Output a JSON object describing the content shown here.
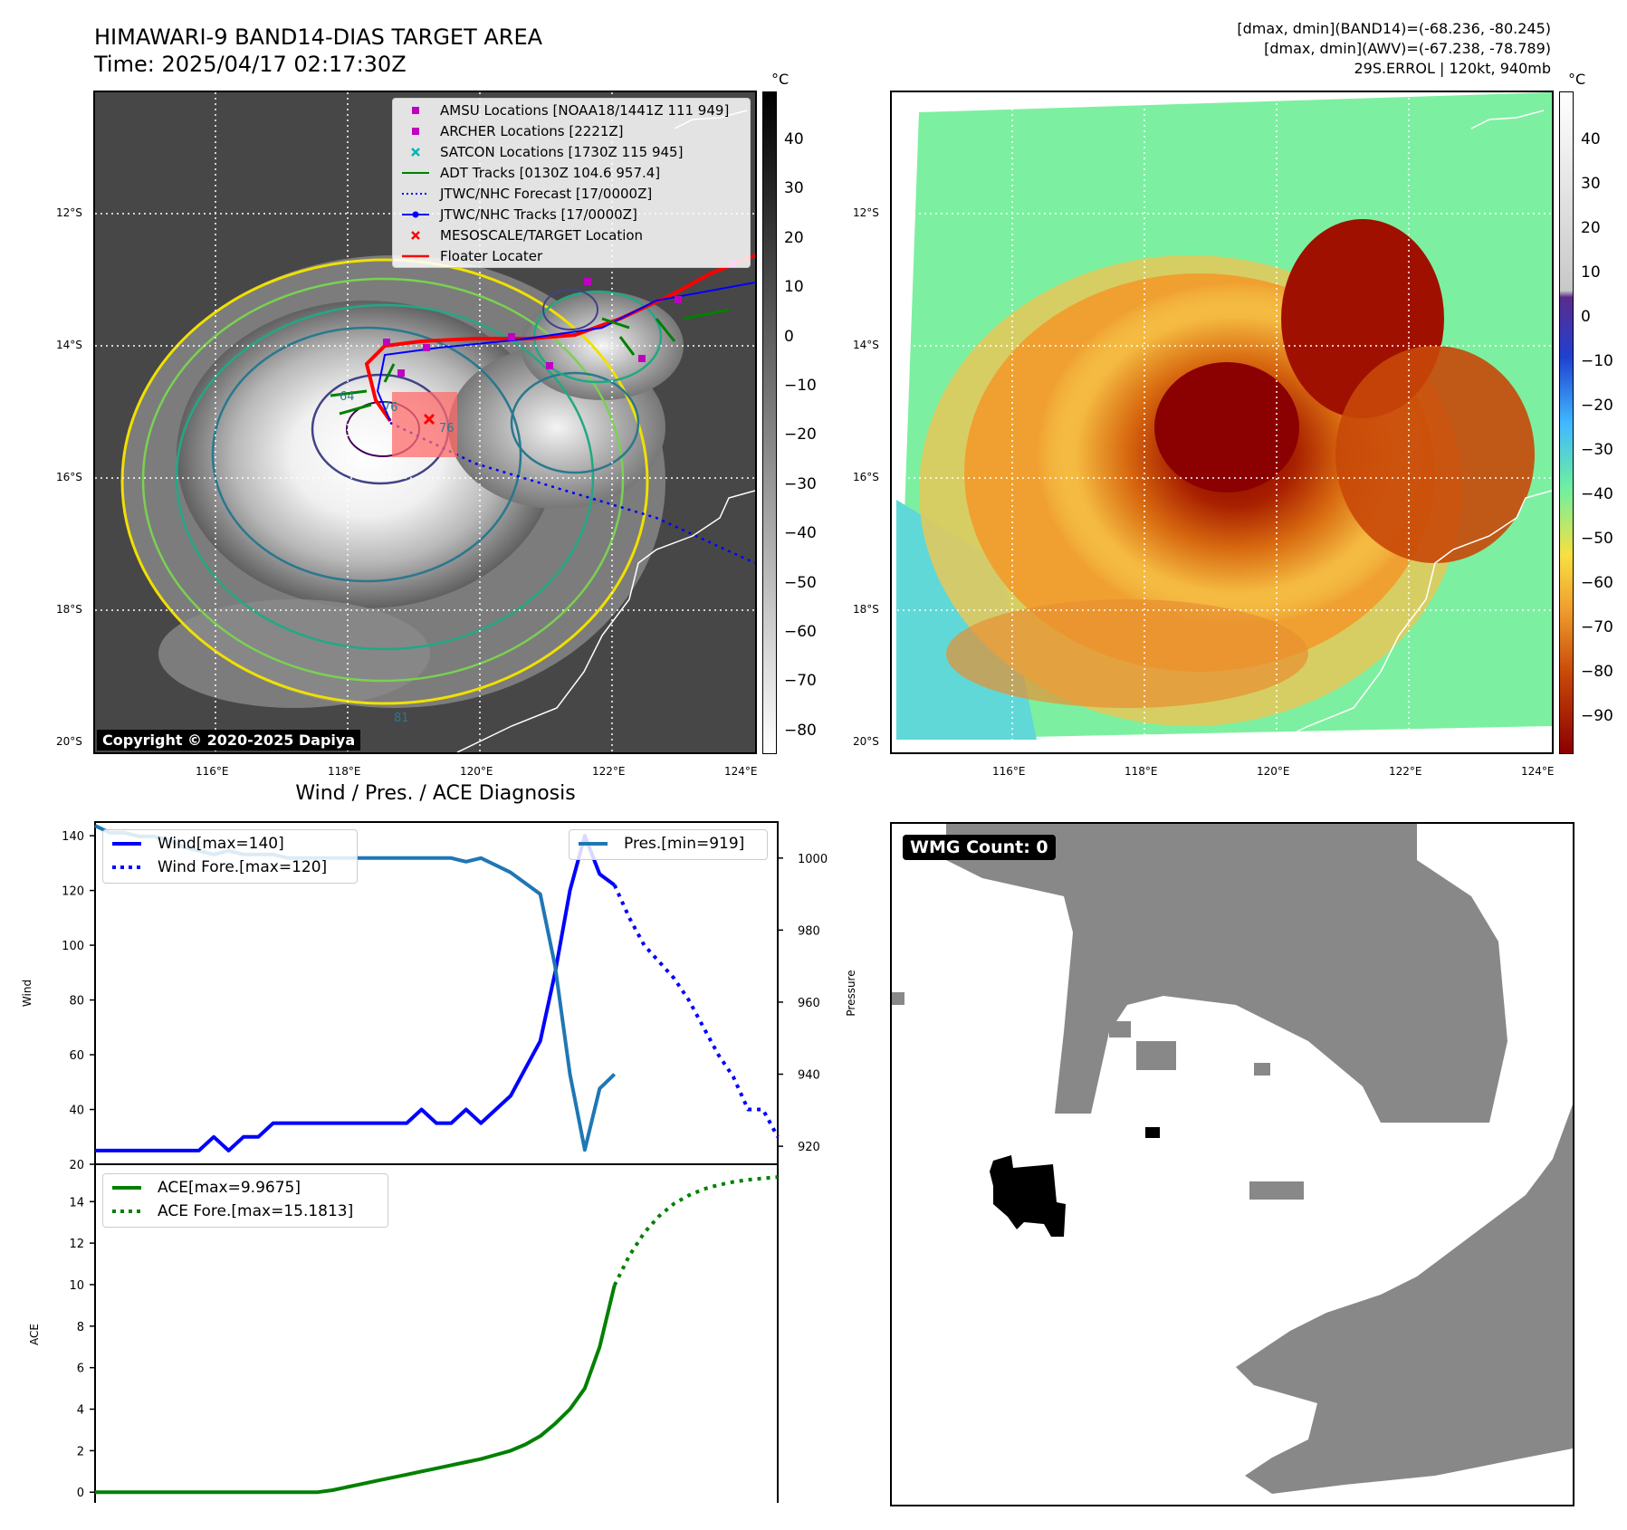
{
  "header": {
    "title_line1": "HIMAWARI-9 BAND14-DIAS TARGET AREA",
    "title_line2": "Time: 2025/04/17 02:17:30Z",
    "stats_line1": "[dmax, dmin](BAND14)=(-68.236, -80.245)",
    "stats_line2": "[dmax, dmin](AWV)=(-67.238, -78.789)",
    "stats_line3": "29S.ERROL | 120kt, 940mb"
  },
  "map_common": {
    "lat_labels": [
      "12°S",
      "14°S",
      "16°S",
      "18°S",
      "20°S"
    ],
    "lon_labels": [
      "116°E",
      "118°E",
      "120°E",
      "122°E",
      "124°E"
    ]
  },
  "ir_panel": {
    "legend": [
      {
        "label": "AMSU Locations [NOAA18/1441Z 111 949]",
        "icon": "magenta-square",
        "color": "#c000c0"
      },
      {
        "label": "ARCHER Locations [2221Z]",
        "icon": "magenta-square",
        "color": "#c000c0"
      },
      {
        "label": "SATCON Locations [1730Z 115 945]",
        "icon": "cyan-x",
        "color": "#00b5b5"
      },
      {
        "label": "ADT Tracks [0130Z 104.6 957.4]",
        "icon": "green-line",
        "color": "#008000"
      },
      {
        "label": "JTWC/NHC Forecast [17/0000Z]",
        "icon": "blue-dotted-line",
        "color": "#0000ff"
      },
      {
        "label": "JTWC/NHC Tracks [17/0000Z]",
        "icon": "blue-line-dot",
        "color": "#0000ff"
      },
      {
        "label": "MESOSCALE/TARGET Location",
        "icon": "red-x",
        "color": "#ff0000"
      },
      {
        "label": "Floater Locater",
        "icon": "red-line",
        "color": "#ff0000"
      }
    ],
    "colorbar_unit": "°C",
    "colorbar_ticks": [
      "40",
      "30",
      "20",
      "10",
      "0",
      "−10",
      "−20",
      "−30",
      "−40",
      "−50",
      "−60",
      "−70",
      "−80"
    ],
    "copyright": "Copyright © 2020-2025 Dapiya",
    "contour_labels": [
      "64",
      "76",
      "76",
      "64",
      "51",
      "81"
    ]
  },
  "awv_panel": {
    "colorbar_unit": "°C",
    "colorbar_ticks": [
      "40",
      "30",
      "20",
      "10",
      "0",
      "−10",
      "−20",
      "−30",
      "−40",
      "−50",
      "−60",
      "−70",
      "−80",
      "−90"
    ]
  },
  "wmg_panel": {
    "label": "WMG Count: 0"
  },
  "chart_data": [
    {
      "type": "line",
      "title": "Wind / Pres. / ACE Diagnosis",
      "ylabel": "Wind",
      "ylabel_right": "Pressure",
      "ylim": [
        20,
        145
      ],
      "ylim_right": [
        915,
        1010
      ],
      "yticks": [
        20,
        40,
        60,
        80,
        100,
        120,
        140
      ],
      "yticks_right": [
        920,
        940,
        960,
        980,
        1000
      ],
      "x": [
        0,
        1,
        2,
        3,
        4,
        5,
        6,
        7,
        8,
        9,
        10,
        11,
        12,
        13,
        14,
        15,
        16,
        17,
        18,
        19,
        20,
        21,
        22,
        23,
        24,
        25,
        26,
        27,
        28,
        29,
        30,
        31,
        32,
        33,
        34,
        35
      ],
      "series": [
        {
          "name": "Wind[max=140]",
          "color": "#0000ff",
          "style": "solid",
          "axis": "left",
          "values": [
            25,
            25,
            25,
            25,
            25,
            25,
            25,
            25,
            30,
            25,
            30,
            30,
            35,
            35,
            35,
            35,
            35,
            35,
            35,
            35,
            35,
            35,
            40,
            35,
            35,
            40,
            35,
            40,
            45,
            55,
            65,
            90,
            120,
            140,
            126,
            122
          ]
        },
        {
          "name": "Wind Fore.[max=120]",
          "color": "#0000ff",
          "style": "dotted",
          "axis": "left",
          "x": [
            35,
            36,
            37,
            38,
            39,
            40,
            41,
            42,
            43,
            44,
            45,
            46
          ],
          "values": [
            122,
            110,
            100,
            94,
            88,
            80,
            70,
            60,
            52,
            40,
            40,
            30
          ]
        },
        {
          "name": "Pres.[min=919]",
          "color": "#1f77b4",
          "style": "solid",
          "axis": "right",
          "values": [
            1009,
            1007,
            1007,
            1006,
            1006,
            1005,
            1003,
            1002,
            1001,
            1002,
            1001,
            1001,
            1001,
            1000,
            1000,
            1000,
            1000,
            1000,
            1000,
            1000,
            1000,
            1000,
            1000,
            1000,
            1000,
            999,
            1000,
            998,
            996,
            993,
            990,
            970,
            940,
            919,
            936,
            940
          ]
        }
      ]
    },
    {
      "type": "line",
      "ylabel": "ACE",
      "ylim": [
        -0.6,
        15.8
      ],
      "yticks": [
        0,
        2,
        4,
        6,
        8,
        10,
        12,
        14
      ],
      "x": [
        0,
        1,
        2,
        3,
        4,
        5,
        6,
        7,
        8,
        9,
        10,
        11,
        12,
        13,
        14,
        15,
        16,
        17,
        18,
        19,
        20,
        21,
        22,
        23,
        24,
        25,
        26,
        27,
        28,
        29,
        30,
        31,
        32,
        33,
        34,
        35
      ],
      "series": [
        {
          "name": "ACE[max=9.9675]",
          "color": "#008000",
          "style": "solid",
          "values": [
            0,
            0,
            0,
            0,
            0,
            0,
            0,
            0,
            0,
            0,
            0,
            0,
            0,
            0,
            0,
            0,
            0.1,
            0.25,
            0.4,
            0.55,
            0.7,
            0.85,
            1.0,
            1.15,
            1.3,
            1.45,
            1.6,
            1.8,
            2.0,
            2.3,
            2.7,
            3.3,
            4.0,
            5.0,
            7.0,
            9.97
          ]
        },
        {
          "name": "ACE Fore.[max=15.1813]",
          "color": "#008000",
          "style": "dotted",
          "x": [
            35,
            36,
            37,
            38,
            39,
            40,
            41,
            42,
            43,
            44,
            45,
            46
          ],
          "values": [
            9.97,
            11.4,
            12.5,
            13.3,
            13.9,
            14.3,
            14.6,
            14.8,
            14.95,
            15.05,
            15.12,
            15.18
          ]
        }
      ]
    }
  ]
}
